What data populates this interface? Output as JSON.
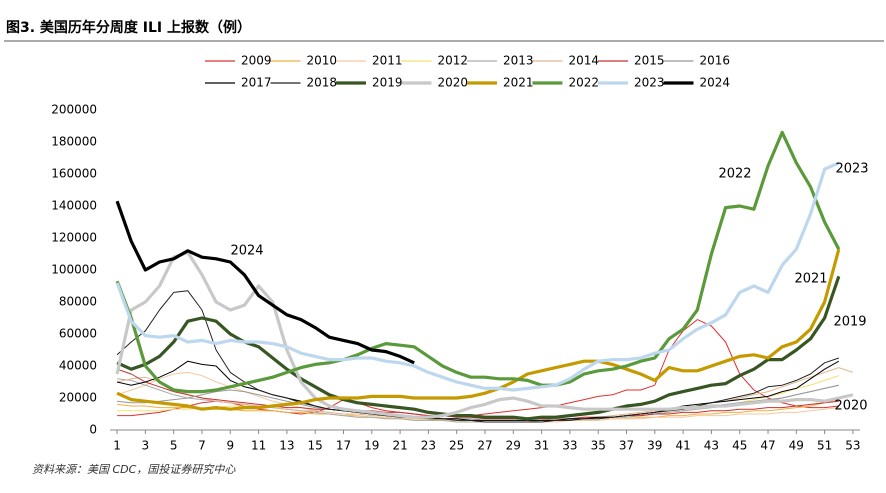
{
  "chart_data": {
    "type": "line",
    "title": "图3. 美国历年分周度 ILI 上报数（例）",
    "source": "资料来源：美国 CDC，国投证券研究中心",
    "x": [
      1,
      2,
      3,
      4,
      5,
      6,
      7,
      8,
      9,
      10,
      11,
      12,
      13,
      14,
      15,
      16,
      17,
      18,
      19,
      20,
      21,
      22,
      23,
      24,
      25,
      26,
      27,
      28,
      29,
      30,
      31,
      32,
      33,
      34,
      35,
      36,
      37,
      38,
      39,
      40,
      41,
      42,
      43,
      44,
      45,
      46,
      47,
      48,
      49,
      50,
      51,
      52,
      53
    ],
    "xlim": [
      0.5,
      53.5
    ],
    "xticks": [
      1,
      3,
      5,
      7,
      9,
      11,
      13,
      15,
      17,
      19,
      21,
      23,
      25,
      27,
      29,
      31,
      33,
      35,
      37,
      39,
      41,
      43,
      45,
      47,
      49,
      51,
      53
    ],
    "ylim": [
      0,
      200000
    ],
    "yticks": [
      0,
      20000,
      40000,
      60000,
      80000,
      100000,
      120000,
      140000,
      160000,
      180000,
      200000
    ],
    "grid": false,
    "legend": "top",
    "annotations": [
      "2024",
      "2022",
      "2023",
      "2021",
      "2019",
      "2020"
    ],
    "series": [
      {
        "name": "2009",
        "color": "#e03030",
        "values": [
          9000,
          9000,
          10000,
          11000,
          13000,
          15000,
          17000,
          18000,
          17000,
          15000,
          13000,
          12000,
          11000,
          10000,
          11000,
          14000,
          19000,
          17000,
          14000,
          12000,
          11000,
          10000,
          9000,
          9000,
          9000,
          9000,
          10000,
          11000,
          12000,
          13000,
          14000,
          15000,
          17000,
          19000,
          21000,
          22000,
          25000,
          25000,
          28000,
          50000,
          62000,
          69000,
          65000,
          55000,
          35000,
          25000,
          20000,
          17000,
          15000,
          14000,
          14000,
          15000,
          null
        ]
      },
      {
        "name": "2010",
        "color": "#f0b040",
        "values": [
          16000,
          15000,
          15000,
          14000,
          14000,
          14000,
          13000,
          13000,
          13000,
          12000,
          12000,
          12000,
          11000,
          11000,
          10000,
          10000,
          9000,
          9000,
          8000,
          8000,
          7000,
          7000,
          7000,
          6000,
          6000,
          6000,
          5000,
          5000,
          5000,
          5000,
          5000,
          5000,
          6000,
          6000,
          6000,
          7000,
          7000,
          8000,
          8000,
          9000,
          9000,
          10000,
          10000,
          11000,
          11000,
          12000,
          12000,
          13000,
          14000,
          15000,
          17000,
          19000,
          null
        ]
      },
      {
        "name": "2011",
        "color": "#f5c8a0",
        "values": [
          22000,
          25000,
          28000,
          32000,
          35000,
          36000,
          34000,
          30000,
          27000,
          24000,
          21000,
          18000,
          16000,
          14000,
          12000,
          11000,
          10000,
          9000,
          8000,
          8000,
          7000,
          7000,
          6000,
          6000,
          6000,
          5000,
          5000,
          5000,
          5000,
          5000,
          5000,
          5000,
          6000,
          6000,
          6000,
          7000,
          7000,
          7000,
          8000,
          8000,
          8000,
          9000,
          9000,
          9000,
          10000,
          10000,
          10000,
          11000,
          11000,
          12000,
          13000,
          14000,
          null
        ]
      },
      {
        "name": "2012",
        "color": "#f3e070",
        "values": [
          12000,
          12000,
          12000,
          12000,
          13000,
          13000,
          14000,
          14000,
          15000,
          15000,
          15000,
          14000,
          13000,
          12000,
          11000,
          10000,
          9000,
          8000,
          8000,
          7000,
          7000,
          6000,
          6000,
          6000,
          5000,
          5000,
          5000,
          5000,
          5000,
          5000,
          6000,
          6000,
          6000,
          7000,
          7000,
          8000,
          8000,
          9000,
          10000,
          11000,
          12000,
          13000,
          14000,
          15000,
          17000,
          19000,
          21000,
          23000,
          26000,
          28000,
          31000,
          34000,
          null
        ]
      },
      {
        "name": "2013",
        "color": "#aaaaaa",
        "values": [
          32000,
          31000,
          28000,
          25000,
          22000,
          20000,
          19000,
          18000,
          17000,
          16000,
          15000,
          14000,
          13000,
          12000,
          11000,
          10000,
          9000,
          8000,
          8000,
          7000,
          7000,
          6000,
          6000,
          6000,
          5000,
          5000,
          5000,
          5000,
          5000,
          5000,
          6000,
          6000,
          6000,
          7000,
          7000,
          8000,
          8000,
          9000,
          10000,
          11000,
          12000,
          13000,
          14000,
          15000,
          16000,
          17000,
          18000,
          20000,
          22000,
          24000,
          26000,
          28000,
          null
        ]
      },
      {
        "name": "2014",
        "color": "#e0b890",
        "values": [
          30000,
          32000,
          33000,
          30000,
          26000,
          22000,
          20000,
          18000,
          17000,
          16000,
          15000,
          14000,
          13000,
          12000,
          12000,
          11000,
          10000,
          10000,
          9000,
          9000,
          8000,
          8000,
          7000,
          7000,
          7000,
          6000,
          6000,
          6000,
          6000,
          6000,
          6000,
          7000,
          7000,
          8000,
          8000,
          9000,
          10000,
          11000,
          12000,
          13000,
          14000,
          15000,
          17000,
          18000,
          20000,
          22000,
          24000,
          27000,
          30000,
          33000,
          36000,
          39000,
          36000
        ]
      },
      {
        "name": "2015",
        "color": "#c83030",
        "values": [
          38000,
          35000,
          30000,
          27000,
          24000,
          22000,
          20000,
          19000,
          18000,
          17000,
          16000,
          15000,
          14000,
          14000,
          13000,
          13000,
          12000,
          12000,
          12000,
          11000,
          11000,
          10000,
          9000,
          9000,
          8000,
          8000,
          7000,
          7000,
          7000,
          7000,
          7000,
          7000,
          7000,
          8000,
          8000,
          8000,
          9000,
          9000,
          10000,
          10000,
          11000,
          11000,
          12000,
          12000,
          13000,
          13000,
          14000,
          14000,
          15000,
          16000,
          17000,
          18000,
          null
        ]
      },
      {
        "name": "2016",
        "color": "#999999",
        "values": [
          18000,
          17000,
          17000,
          18000,
          19000,
          20000,
          22000,
          24000,
          25000,
          24000,
          22000,
          20000,
          18000,
          16000,
          14000,
          13000,
          12000,
          11000,
          10000,
          9000,
          9000,
          8000,
          8000,
          7000,
          7000,
          7000,
          6000,
          6000,
          6000,
          6000,
          6000,
          7000,
          7000,
          7000,
          8000,
          8000,
          9000,
          10000,
          11000,
          12000,
          13000,
          14000,
          15000,
          16000,
          17000,
          18000,
          19000,
          20000,
          22000,
          24000,
          26000,
          28000,
          null
        ]
      },
      {
        "name": "2017",
        "color": "#000000",
        "values": [
          30000,
          28000,
          30000,
          33000,
          37000,
          43000,
          41000,
          40000,
          31000,
          27000,
          25000,
          22000,
          20000,
          18000,
          15000,
          13000,
          12000,
          11000,
          10000,
          9000,
          9000,
          8000,
          8000,
          7000,
          7000,
          6000,
          6000,
          6000,
          6000,
          6000,
          6000,
          6000,
          7000,
          7000,
          8000,
          8000,
          9000,
          10000,
          11000,
          13000,
          15000,
          16000,
          17000,
          18000,
          19000,
          20000,
          21000,
          24000,
          26000,
          32000,
          38000,
          43000,
          null
        ]
      },
      {
        "name": "2018",
        "color": "#222222",
        "values": [
          47000,
          55000,
          62000,
          75000,
          86000,
          87000,
          75000,
          50000,
          36000,
          30000,
          25000,
          22000,
          20000,
          17000,
          15000,
          13000,
          12000,
          11000,
          10000,
          9000,
          8000,
          8000,
          7000,
          7000,
          6000,
          6000,
          5000,
          5000,
          5000,
          5000,
          5000,
          6000,
          6000,
          7000,
          7000,
          8000,
          9000,
          10000,
          11000,
          12000,
          13000,
          15000,
          17000,
          19000,
          21000,
          23000,
          27000,
          28000,
          31000,
          35000,
          42000,
          45000,
          null
        ]
      },
      {
        "name": "2019",
        "color": "#375623",
        "values": [
          42000,
          38000,
          41000,
          46000,
          55000,
          68000,
          70000,
          68000,
          60000,
          55000,
          52000,
          45000,
          38000,
          32000,
          27000,
          22000,
          19000,
          17000,
          16000,
          15000,
          14000,
          13000,
          11000,
          10000,
          9000,
          9000,
          8000,
          8000,
          8000,
          7000,
          8000,
          8000,
          9000,
          10000,
          11000,
          13000,
          15000,
          16000,
          18000,
          22000,
          24000,
          26000,
          28000,
          29000,
          34000,
          38000,
          44000,
          44000,
          50000,
          57000,
          70000,
          96000,
          null
        ]
      },
      {
        "name": "2020",
        "color": "#c8c8c8",
        "values": [
          35000,
          75000,
          80000,
          90000,
          108000,
          111000,
          97000,
          80000,
          75000,
          78000,
          90000,
          80000,
          50000,
          30000,
          20000,
          15000,
          13000,
          12000,
          11000,
          10000,
          9000,
          8000,
          8000,
          9000,
          11000,
          14000,
          16000,
          19000,
          20000,
          18000,
          15000,
          15000,
          14000,
          13000,
          13000,
          13000,
          13000,
          13000,
          13000,
          13000,
          14000,
          14000,
          15000,
          15000,
          16000,
          17000,
          18000,
          18000,
          19000,
          19000,
          18000,
          20000,
          22000
        ]
      },
      {
        "name": "2021",
        "color": "#c49a00",
        "values": [
          23000,
          19000,
          18000,
          17000,
          16000,
          15000,
          13000,
          14000,
          13000,
          14000,
          14000,
          15000,
          16000,
          17000,
          19000,
          20000,
          20000,
          20000,
          21000,
          21000,
          21000,
          20000,
          20000,
          20000,
          20000,
          21000,
          23000,
          26000,
          30000,
          35000,
          37000,
          39000,
          41000,
          43000,
          43000,
          41000,
          38000,
          35000,
          31000,
          39000,
          37000,
          37000,
          40000,
          43000,
          46000,
          47000,
          45000,
          52000,
          55000,
          63000,
          80000,
          113000,
          null
        ]
      },
      {
        "name": "2022",
        "color": "#5a9a3a",
        "values": [
          93000,
          70000,
          40000,
          30000,
          25000,
          24000,
          24000,
          25000,
          27000,
          29000,
          31000,
          33000,
          36000,
          39000,
          41000,
          42000,
          44000,
          47000,
          51000,
          54000,
          53000,
          52000,
          46000,
          40000,
          36000,
          33000,
          33000,
          32000,
          32000,
          31000,
          28000,
          28000,
          30000,
          35000,
          37000,
          38000,
          40000,
          43000,
          45000,
          57000,
          63000,
          75000,
          110000,
          139000,
          140000,
          138000,
          165000,
          186000,
          167000,
          152000,
          130000,
          113000,
          null
        ]
      },
      {
        "name": "2023",
        "color": "#bdd7ee",
        "values": [
          92000,
          68000,
          59000,
          58000,
          59000,
          55000,
          56000,
          54000,
          56000,
          55000,
          55000,
          54000,
          52000,
          48000,
          46000,
          44000,
          44000,
          45000,
          45000,
          43000,
          42000,
          40000,
          36000,
          33000,
          30000,
          28000,
          26000,
          26000,
          25000,
          26000,
          27000,
          28000,
          32000,
          38000,
          43000,
          44000,
          44000,
          45000,
          48000,
          50000,
          57000,
          63000,
          67000,
          72000,
          86000,
          90000,
          86000,
          103000,
          113000,
          135000,
          163000,
          167000,
          null
        ]
      },
      {
        "name": "2024",
        "color": "#000000",
        "values": [
          143000,
          118000,
          100000,
          105000,
          107000,
          112000,
          108000,
          107000,
          105000,
          97000,
          84000,
          78000,
          72000,
          69000,
          64000,
          58000,
          56000,
          54000,
          50000,
          49000,
          46000,
          42000,
          null,
          null,
          null,
          null,
          null,
          null,
          null,
          null,
          null,
          null,
          null,
          null,
          null,
          null,
          null,
          null,
          null,
          null,
          null,
          null,
          null,
          null,
          null,
          null,
          null,
          null,
          null,
          null,
          null,
          null,
          null
        ]
      }
    ]
  }
}
